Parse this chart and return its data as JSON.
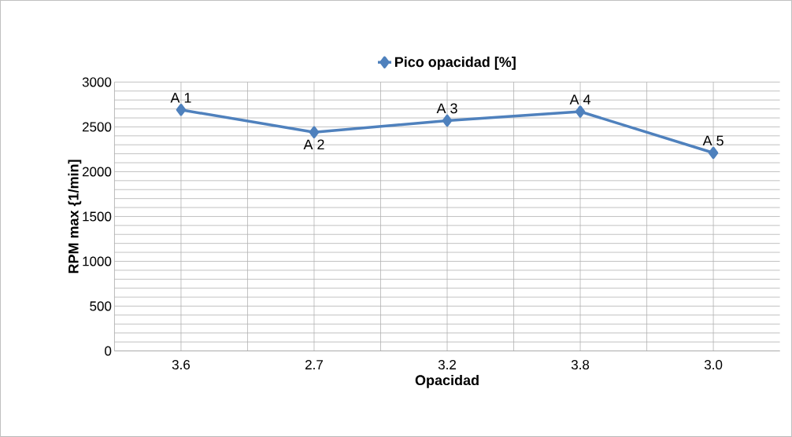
{
  "chart_data": {
    "type": "line",
    "xlabel": "Opacidad",
    "ylabel": "RPM max {1/min]",
    "categories": [
      "3.6",
      "2.7",
      "3.2",
      "3.8",
      "3.0"
    ],
    "series": [
      {
        "name": "Pico opacidad [%]",
        "color": "#4f81bd",
        "values": [
          2690,
          2440,
          2570,
          2670,
          2210
        ]
      }
    ],
    "ylim": [
      0,
      3000
    ],
    "yticks": [
      0,
      500,
      1000,
      1500,
      2000,
      2500,
      3000
    ],
    "grid": true,
    "legend": "top",
    "marker": "diamond",
    "line_style": "solid",
    "annotations": [
      {
        "text": "A 1",
        "x": "3.6",
        "y": 2690
      },
      {
        "text": "A 2",
        "x": "2.7",
        "y": 2440
      },
      {
        "text": "A 3",
        "x": "3.2",
        "y": 2570
      },
      {
        "text": "A 4",
        "x": "3.8",
        "y": 2670
      },
      {
        "text": "A 5",
        "x": "3.0",
        "y": 2210
      }
    ]
  }
}
